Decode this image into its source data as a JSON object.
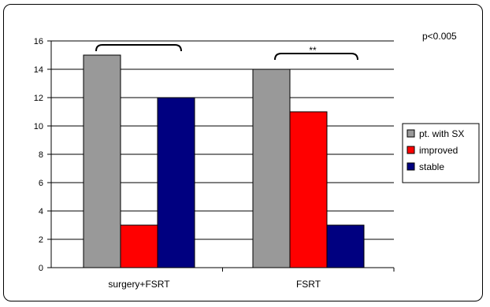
{
  "chart_data": {
    "type": "bar",
    "categories": [
      "surgery+FSRT",
      "FSRT"
    ],
    "series": [
      {
        "name": "pt. with SX",
        "values": [
          15,
          14
        ],
        "color": "#999999"
      },
      {
        "name": "improved",
        "values": [
          3,
          11
        ],
        "color": "#ff0000"
      },
      {
        "name": "stable",
        "values": [
          12,
          3
        ],
        "color": "#000080"
      }
    ],
    "y_ticks": [
      "0",
      "2",
      "4",
      "6",
      "8",
      "10",
      "12",
      "14",
      "16"
    ],
    "ylim": [
      0,
      16
    ],
    "grid": true,
    "legend": "right",
    "annotations": {
      "pvalue": "p<0.005",
      "significance": "**"
    },
    "plot_background": "#ffffff"
  }
}
